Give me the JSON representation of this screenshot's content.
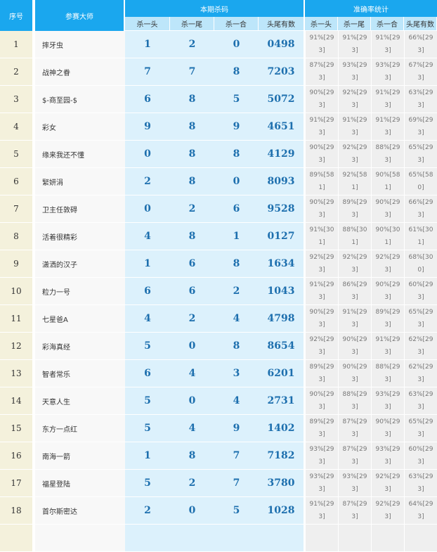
{
  "header": {
    "serial": "序号",
    "master": "参赛大师",
    "current": "本期杀码",
    "accuracy": "准确率统计",
    "sub": [
      "杀一头",
      "杀一尾",
      "杀一合",
      "头尾有数"
    ],
    "sub2": [
      "杀一头",
      "杀一尾",
      "杀一合",
      "头尾有数"
    ]
  },
  "rows": [
    {
      "no": "1",
      "name": "摔牙虫",
      "k": [
        "1",
        "2",
        "0",
        "0498"
      ],
      "a": [
        "91%[293]",
        "91%[293]",
        "91%[293]",
        "66%[293]"
      ]
    },
    {
      "no": "2",
      "name": "战神之眷",
      "k": [
        "7",
        "7",
        "8",
        "7203"
      ],
      "a": [
        "87%[293]",
        "93%[293]",
        "93%[293]",
        "67%[293]"
      ]
    },
    {
      "no": "3",
      "name": "$-商至园-$",
      "k": [
        "6",
        "8",
        "5",
        "5072"
      ],
      "a": [
        "90%[293]",
        "92%[293]",
        "91%[293]",
        "63%[293]"
      ]
    },
    {
      "no": "4",
      "name": "彩女",
      "k": [
        "9",
        "8",
        "9",
        "4651"
      ],
      "a": [
        "91%[293]",
        "91%[293]",
        "91%[293]",
        "69%[293]"
      ]
    },
    {
      "no": "5",
      "name": "缘来我还不懂",
      "k": [
        "0",
        "8",
        "8",
        "4129"
      ],
      "a": [
        "90%[293]",
        "92%[293]",
        "88%[293]",
        "65%[293]"
      ]
    },
    {
      "no": "6",
      "name": "緊妍涓",
      "k": [
        "2",
        "8",
        "0",
        "8093"
      ],
      "a": [
        "89%[581]",
        "92%[581]",
        "90%[581]",
        "65%[580]"
      ]
    },
    {
      "no": "7",
      "name": "卫主任敦碍",
      "k": [
        "0",
        "2",
        "6",
        "9528"
      ],
      "a": [
        "90%[293]",
        "89%[293]",
        "90%[293]",
        "66%[293]"
      ]
    },
    {
      "no": "8",
      "name": "活着很精彩",
      "k": [
        "4",
        "8",
        "1",
        "0127"
      ],
      "a": [
        "91%[301]",
        "88%[301]",
        "90%[301]",
        "61%[301]"
      ]
    },
    {
      "no": "9",
      "name": "潇洒的汉子",
      "k": [
        "1",
        "6",
        "8",
        "1634"
      ],
      "a": [
        "92%[293]",
        "92%[293]",
        "92%[293]",
        "68%[300]"
      ]
    },
    {
      "no": "10",
      "name": "粒力一号",
      "k": [
        "6",
        "6",
        "2",
        "1043"
      ],
      "a": [
        "91%[293]",
        "86%[293]",
        "90%[293]",
        "60%[293]"
      ]
    },
    {
      "no": "11",
      "name": "七星爸A",
      "k": [
        "4",
        "2",
        "4",
        "4798"
      ],
      "a": [
        "90%[293]",
        "91%[293]",
        "89%[293]",
        "65%[293]"
      ]
    },
    {
      "no": "12",
      "name": "彩海真经",
      "k": [
        "5",
        "0",
        "8",
        "8654"
      ],
      "a": [
        "92%[293]",
        "90%[293]",
        "91%[293]",
        "62%[293]"
      ]
    },
    {
      "no": "13",
      "name": "智者常乐",
      "k": [
        "6",
        "4",
        "3",
        "6201"
      ],
      "a": [
        "89%[293]",
        "90%[293]",
        "88%[293]",
        "62%[293]"
      ]
    },
    {
      "no": "14",
      "name": "天意人生",
      "k": [
        "5",
        "0",
        "4",
        "2731"
      ],
      "a": [
        "90%[293]",
        "88%[293]",
        "93%[293]",
        "63%[293]"
      ]
    },
    {
      "no": "15",
      "name": "东方一点红",
      "k": [
        "5",
        "4",
        "9",
        "1402"
      ],
      "a": [
        "89%[293]",
        "87%[293]",
        "90%[293]",
        "65%[293]"
      ]
    },
    {
      "no": "16",
      "name": "南海一箭",
      "k": [
        "1",
        "8",
        "7",
        "7182"
      ],
      "a": [
        "93%[293]",
        "87%[293]",
        "93%[293]",
        "60%[293]"
      ]
    },
    {
      "no": "17",
      "name": "福星登陆",
      "k": [
        "5",
        "2",
        "7",
        "3780"
      ],
      "a": [
        "93%[293]",
        "93%[293]",
        "92%[293]",
        "63%[293]"
      ]
    },
    {
      "no": "18",
      "name": "首尔斯密达",
      "k": [
        "2",
        "0",
        "5",
        "1028"
      ],
      "a": [
        "91%[293]",
        "87%[293]",
        "92%[293]",
        "64%[293]"
      ]
    }
  ]
}
